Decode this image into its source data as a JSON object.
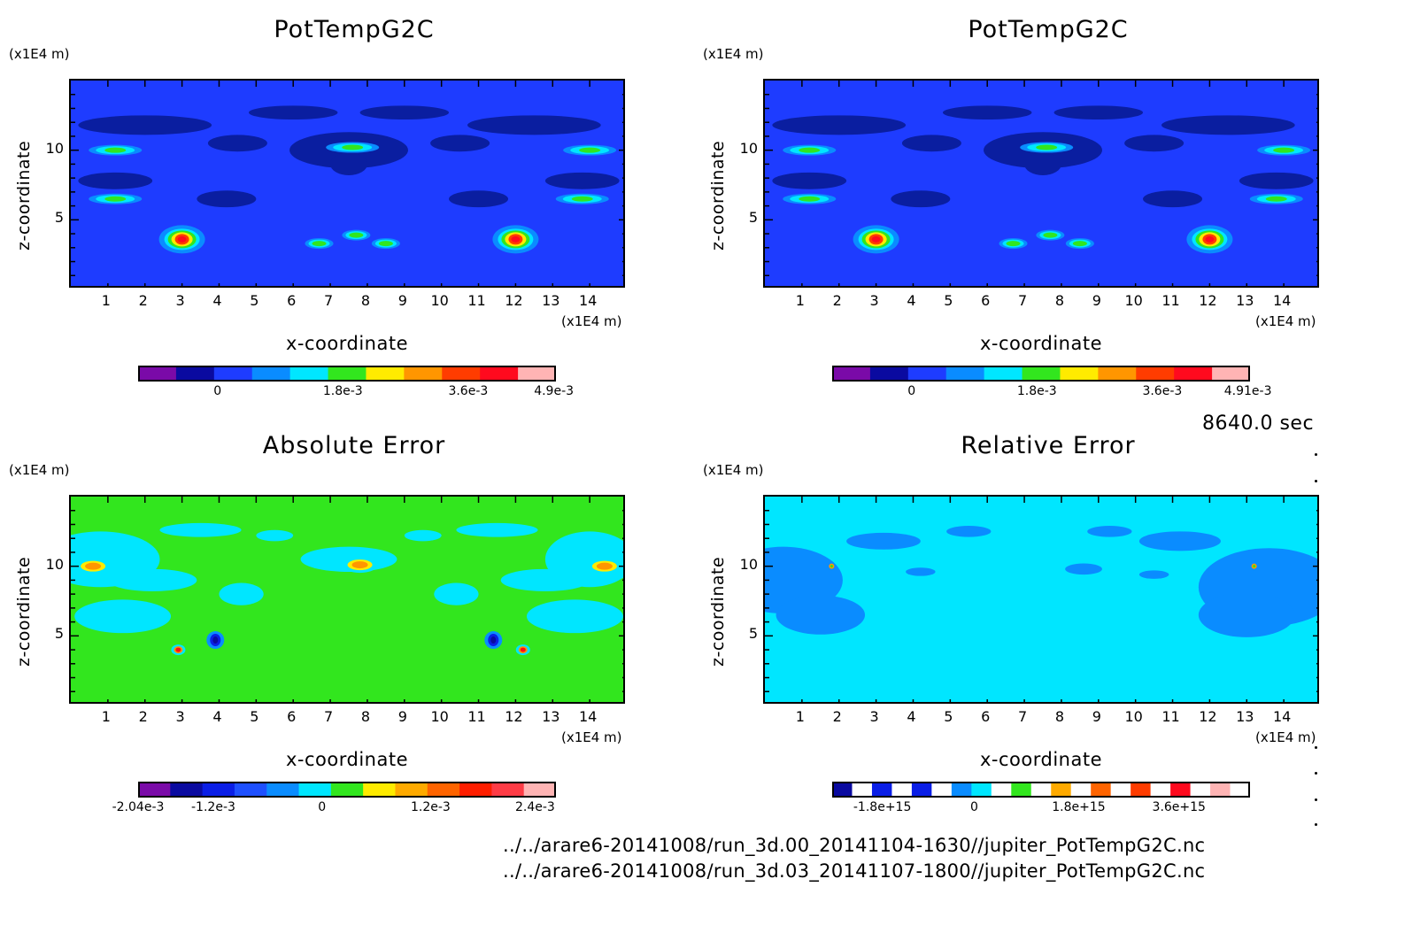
{
  "time_label": "8640.0 sec",
  "files": [
    "../../arare6-20141008/run_3d.00_20141104-1630//jupiter_PotTempG2C.nc",
    "../../arare6-20141008/run_3d.03_20141107-1800//jupiter_PotTempG2C.nc"
  ],
  "chart_data": [
    {
      "type": "heatmap",
      "title": "PotTempG2C",
      "xlabel": "x-coordinate",
      "ylabel": "z-coordinate",
      "x_unit": "(x1E4 m)",
      "y_unit": "(x1E4 m)",
      "xticks": [
        "1",
        "2",
        "3",
        "4",
        "5",
        "6",
        "7",
        "8",
        "9",
        "10",
        "11",
        "12",
        "13",
        "14"
      ],
      "yticks": [
        "5",
        "10"
      ],
      "xlim": [
        0,
        15
      ],
      "ylim": [
        0,
        15
      ],
      "background": "#1e3cff",
      "colorbar": {
        "colors": [
          "#7a0aa8",
          "#0a0aa0",
          "#1e3cff",
          "#0a8cff",
          "#00e6ff",
          "#32e61e",
          "#ffeb00",
          "#ff9600",
          "#ff3c00",
          "#ff0a1e",
          "#ffb4b4"
        ],
        "labels": [
          "0",
          "1.8e-3",
          "3.6e-3",
          "4.9e-3"
        ],
        "label_positions": [
          0.19,
          0.49,
          0.79,
          0.995
        ]
      },
      "features": [
        {
          "x": 3.0,
          "z": 3.6,
          "kind": "hot"
        },
        {
          "x": 12.0,
          "z": 3.6,
          "kind": "hot"
        },
        {
          "x": 6.7,
          "z": 3.3,
          "kind": "warm"
        },
        {
          "x": 8.5,
          "z": 3.3,
          "kind": "warm"
        },
        {
          "x": 7.7,
          "z": 3.9,
          "kind": "warm"
        },
        {
          "x": 7.6,
          "z": 10.2,
          "kind": "cool"
        },
        {
          "x": 1.2,
          "z": 6.5,
          "kind": "cool"
        },
        {
          "x": 13.8,
          "z": 6.5,
          "kind": "cool"
        },
        {
          "x": 1.2,
          "z": 10.0,
          "kind": "cool"
        },
        {
          "x": 14.0,
          "z": 10.0,
          "kind": "cool"
        }
      ]
    },
    {
      "type": "heatmap",
      "title": "PotTempG2C",
      "xlabel": "x-coordinate",
      "ylabel": "z-coordinate",
      "x_unit": "(x1E4 m)",
      "y_unit": "(x1E4 m)",
      "xticks": [
        "1",
        "2",
        "3",
        "4",
        "5",
        "6",
        "7",
        "8",
        "9",
        "10",
        "11",
        "12",
        "13",
        "14"
      ],
      "yticks": [
        "5",
        "10"
      ],
      "xlim": [
        0,
        15
      ],
      "ylim": [
        0,
        15
      ],
      "background": "#1e3cff",
      "colorbar": {
        "colors": [
          "#7a0aa8",
          "#0a0aa0",
          "#1e3cff",
          "#0a8cff",
          "#00e6ff",
          "#32e61e",
          "#ffeb00",
          "#ff9600",
          "#ff3c00",
          "#ff0a1e",
          "#ffb4b4"
        ],
        "labels": [
          "0",
          "1.8e-3",
          "3.6e-3",
          "4.91e-3"
        ],
        "label_positions": [
          0.19,
          0.49,
          0.79,
          0.995
        ]
      },
      "features": [
        {
          "x": 3.0,
          "z": 3.6,
          "kind": "hot"
        },
        {
          "x": 12.0,
          "z": 3.6,
          "kind": "hot"
        },
        {
          "x": 6.7,
          "z": 3.3,
          "kind": "warm"
        },
        {
          "x": 8.5,
          "z": 3.3,
          "kind": "warm"
        },
        {
          "x": 7.7,
          "z": 3.9,
          "kind": "warm"
        },
        {
          "x": 7.6,
          "z": 10.2,
          "kind": "cool"
        },
        {
          "x": 1.2,
          "z": 6.5,
          "kind": "cool"
        },
        {
          "x": 13.8,
          "z": 6.5,
          "kind": "cool"
        },
        {
          "x": 1.2,
          "z": 10.0,
          "kind": "cool"
        },
        {
          "x": 14.0,
          "z": 10.0,
          "kind": "cool"
        }
      ]
    },
    {
      "type": "heatmap",
      "title": "Absolute Error",
      "xlabel": "x-coordinate",
      "ylabel": "z-coordinate",
      "x_unit": "(x1E4 m)",
      "y_unit": "(x1E4 m)",
      "xticks": [
        "1",
        "2",
        "3",
        "4",
        "5",
        "6",
        "7",
        "8",
        "9",
        "10",
        "11",
        "12",
        "13",
        "14"
      ],
      "yticks": [
        "5",
        "10"
      ],
      "xlim": [
        0,
        15
      ],
      "ylim": [
        0,
        15
      ],
      "background": "#32e61e",
      "colorbar": {
        "colors": [
          "#7a0aa8",
          "#0a0aa0",
          "#0a1ee6",
          "#1e50ff",
          "#0a8cff",
          "#00e6ff",
          "#32e61e",
          "#ffeb00",
          "#ffaa00",
          "#ff6400",
          "#ff1e00",
          "#ff3c46",
          "#ffb4b4"
        ],
        "labels": [
          "-2.04e-3",
          "-1.2e-3",
          "0",
          "1.2e-3",
          "2.4e-3"
        ],
        "label_positions": [
          0.0,
          0.18,
          0.44,
          0.7,
          0.95
        ]
      },
      "features": [
        {
          "x": 7.8,
          "z": 10.1,
          "kind": "warm"
        },
        {
          "x": 0.6,
          "z": 10.0,
          "kind": "warm"
        },
        {
          "x": 14.4,
          "z": 10.0,
          "kind": "warm"
        },
        {
          "x": 3.9,
          "z": 4.7,
          "kind": "cold"
        },
        {
          "x": 11.4,
          "z": 4.7,
          "kind": "cold"
        },
        {
          "x": 2.9,
          "z": 4.0,
          "kind": "hot"
        },
        {
          "x": 12.2,
          "z": 4.0,
          "kind": "hot"
        }
      ]
    },
    {
      "type": "heatmap",
      "title": "Relative Error",
      "xlabel": "x-coordinate",
      "ylabel": "z-coordinate",
      "x_unit": "(x1E4 m)",
      "y_unit": "(x1E4 m)",
      "xticks": [
        "1",
        "2",
        "3",
        "4",
        "5",
        "6",
        "7",
        "8",
        "9",
        "10",
        "11",
        "12",
        "13",
        "14"
      ],
      "yticks": [
        "5",
        "10"
      ],
      "xlim": [
        0,
        15
      ],
      "ylim": [
        0,
        15
      ],
      "background": "#00e6ff",
      "colorbar": {
        "colors": [
          "#0a0aa0",
          "#ffffff",
          "#0a1ee6",
          "#ffffff",
          "#0a1ee6",
          "#ffffff",
          "#0a8cff",
          "#00e6ff",
          "#ffffff",
          "#32e61e",
          "#ffffff",
          "#ffaa00",
          "#ffffff",
          "#ff6400",
          "#ffffff",
          "#ff3c00",
          "#ffffff",
          "#ff0a1e",
          "#ffffff",
          "#ffb4b4",
          "#ffffff"
        ],
        "labels": [
          "-1.8e+15",
          "0",
          "1.8e+15",
          "3.6e+15"
        ],
        "label_positions": [
          0.12,
          0.34,
          0.59,
          0.83
        ]
      },
      "features": [
        {
          "x": 1.8,
          "z": 10.0,
          "kind": "hot"
        },
        {
          "x": 13.2,
          "z": 10.0,
          "kind": "hot"
        }
      ]
    }
  ]
}
